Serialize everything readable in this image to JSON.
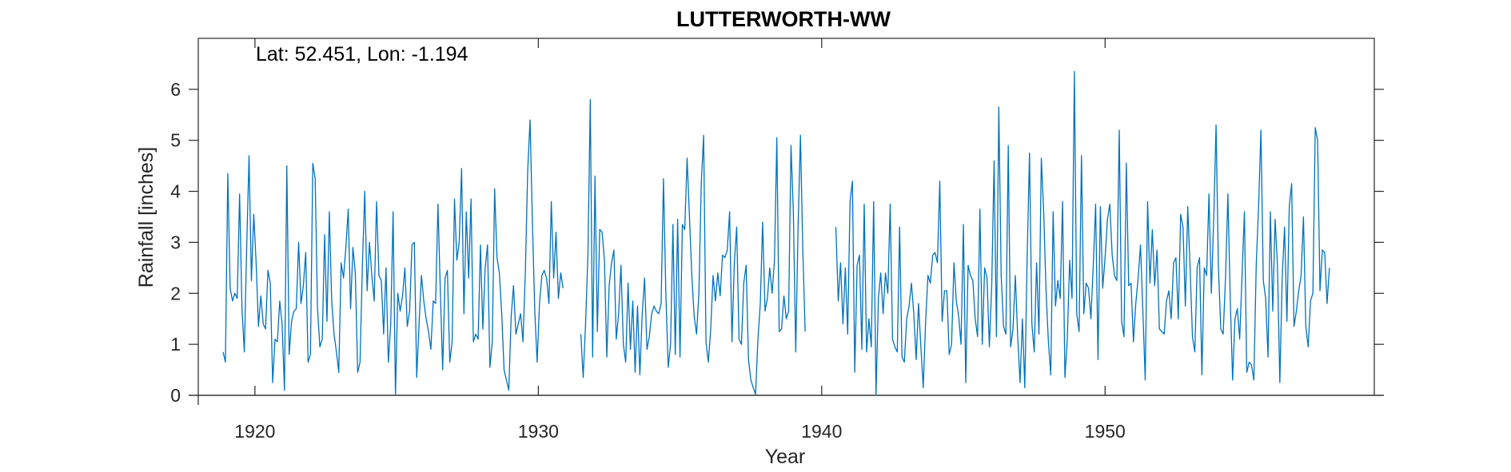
{
  "chart_data": {
    "type": "line",
    "title": "LUTTERWORTH-WW",
    "xlabel": "Year",
    "ylabel": "Rainfall [inches]",
    "annotation": "Lat: 52.451, Lon: -1.194",
    "xlim": [
      1918,
      1959.5
    ],
    "ylim": [
      0,
      7
    ],
    "xticks": [
      1920,
      1930,
      1940,
      1950
    ],
    "yticks": [
      0,
      1,
      2,
      3,
      4,
      5,
      6
    ],
    "grid": false,
    "line_color": "#0072BD",
    "series": [
      {
        "x_start": 1918.875,
        "step_months": 1,
        "segments": [
          {
            "start": 1918.875,
            "values": [
              0.85,
              0.65,
              4.35,
              2.1,
              1.85,
              2.0,
              1.9,
              3.95,
              1.7,
              0.85,
              2.9,
              4.7,
              2.25,
              3.55,
              2.6,
              1.35,
              1.95,
              1.4,
              1.3,
              2.45,
              2.2,
              0.25,
              1.1,
              1.05,
              1.85,
              1.4,
              0.1,
              4.5,
              0.8,
              1.45,
              1.65,
              1.7,
              3.0,
              1.8,
              2.15,
              2.8,
              0.65,
              0.8,
              4.55,
              4.25,
              1.7,
              0.95,
              1.1,
              3.15,
              1.45,
              3.6,
              1.85,
              1.2,
              0.85,
              0.45,
              2.6,
              2.3,
              2.9,
              3.65,
              1.7,
              2.9,
              2.4,
              0.45,
              0.65,
              2.55,
              4.0,
              2.05,
              3.0,
              2.35,
              1.85,
              3.8,
              2.35,
              2.25,
              1.2,
              2.5,
              0.65,
              1.4,
              3.6,
              0.0,
              2.0,
              1.65,
              1.95,
              2.5,
              1.35,
              1.65,
              2.95,
              3.0,
              0.35,
              1.4,
              2.35,
              1.85,
              1.5,
              1.25,
              0.9,
              1.85,
              1.8,
              3.75,
              2.05,
              0.5,
              2.3,
              2.45,
              0.65,
              1.05,
              3.85,
              2.65,
              3.0,
              4.45,
              1.6,
              3.6,
              2.3,
              3.85,
              1.05,
              1.2,
              1.1,
              2.95,
              1.3,
              2.5,
              2.95,
              0.55,
              1.05,
              4.05,
              2.7,
              2.4,
              1.6,
              0.5,
              0.3,
              0.1,
              1.55,
              2.15,
              1.2,
              1.4,
              1.6,
              1.05,
              2.4,
              4.4,
              5.4,
              3.4,
              1.65,
              0.65,
              1.8,
              2.35,
              2.45,
              2.3,
              1.8,
              3.8,
              2.3,
              3.2,
              1.9,
              2.4,
              2.1
            ]
          },
          {
            "start": 1931.5,
            "values": [
              1.2,
              0.35,
              1.4,
              2.75,
              5.8,
              0.75,
              4.3,
              1.25,
              3.25,
              3.2,
              2.65,
              0.75,
              2.15,
              2.6,
              2.85,
              1.1,
              1.6,
              2.55,
              1.0,
              0.65,
              2.2,
              0.9,
              1.85,
              0.45,
              1.75,
              0.4,
              1.6,
              2.3,
              0.9,
              1.15,
              1.6,
              1.75,
              1.65,
              1.6,
              1.8,
              4.25,
              2.0,
              0.55,
              1.0,
              3.35,
              0.8,
              3.45,
              0.75,
              3.35,
              3.25,
              4.65,
              3.5,
              2.35,
              1.55,
              1.2,
              2.0,
              4.15,
              5.1,
              1.05,
              0.65,
              1.3,
              2.35,
              1.85,
              2.4,
              1.95,
              2.75,
              2.7,
              2.85,
              3.6,
              1.05,
              2.6,
              3.3,
              1.1,
              1.0,
              2.2,
              2.55,
              0.7,
              0.3,
              0.15,
              0.02,
              1.1,
              1.8,
              3.4,
              1.65,
              1.9,
              2.5,
              2.0,
              2.65,
              5.05,
              1.25,
              1.3,
              1.95,
              1.5,
              1.65,
              4.9,
              3.6,
              0.85,
              3.3,
              5.1,
              2.85,
              1.25
            ]
          },
          {
            "start": 1940.5,
            "values": [
              3.3,
              1.85,
              2.6,
              1.4,
              2.5,
              1.2,
              3.8,
              4.2,
              0.45,
              2.55,
              2.75,
              0.9,
              3.75,
              0.85,
              1.5,
              0.95,
              3.8,
              0.0,
              1.9,
              2.4,
              1.6,
              2.4,
              2.0,
              3.75,
              1.1,
              0.95,
              0.85,
              3.3,
              0.75,
              0.65,
              1.5,
              1.75,
              2.2,
              1.6,
              0.7,
              1.8,
              0.95,
              0.15,
              1.45,
              2.35,
              2.2,
              2.75,
              2.8,
              2.6,
              4.2,
              1.45,
              2.05,
              2.05,
              0.8,
              1.0,
              2.6,
              1.85,
              1.55,
              1.0,
              3.35,
              0.25,
              2.55,
              2.35,
              2.25,
              1.5,
              1.15,
              3.65,
              1.0,
              2.5,
              2.3,
              0.95,
              2.15,
              4.6,
              1.15,
              5.65,
              2.35,
              1.35,
              1.2,
              4.9,
              0.95,
              1.3,
              2.35,
              1.15,
              0.25,
              1.5,
              0.15,
              2.7,
              4.75,
              1.4,
              0.85,
              2.6,
              1.2,
              4.65,
              3.6,
              2.05,
              1.05,
              0.4,
              3.6,
              1.75,
              2.25,
              1.9,
              3.8,
              0.35,
              1.1,
              2.65,
              1.9,
              6.35,
              1.6,
              1.25,
              4.7,
              1.6,
              2.2,
              2.1,
              1.5,
              2.55,
              3.75,
              0.7,
              3.7,
              2.1,
              2.7,
              3.45,
              3.75,
              2.75,
              2.35,
              2.25,
              5.2,
              1.45,
              1.15,
              4.55,
              2.15,
              2.2,
              1.05,
              1.8,
              2.3,
              2.95,
              1.65,
              0.3,
              3.8,
              2.2,
              3.25,
              2.15,
              2.85,
              1.3,
              1.25,
              1.2,
              1.85,
              2.05,
              1.5,
              2.6,
              2.7,
              1.5,
              3.55,
              3.3,
              1.75,
              3.7,
              2.5,
              1.15,
              0.85,
              2.5,
              2.7,
              0.4,
              2.5,
              2.35,
              3.95,
              2.0,
              3.45,
              5.3,
              2.5,
              1.3,
              1.2,
              2.3,
              3.95,
              1.9,
              0.3,
              1.5,
              1.7,
              1.1,
              2.35,
              3.6,
              0.45,
              0.65,
              0.6,
              0.3,
              2.55,
              3.7,
              5.2,
              2.25,
              1.9,
              0.75,
              3.6,
              1.65,
              3.45,
              2.55,
              0.25,
              2.3,
              3.3,
              1.45,
              3.7,
              4.15,
              1.35,
              1.65,
              2.05,
              2.35,
              3.5,
              1.35,
              0.95,
              1.85,
              2.0,
              5.25,
              5.0,
              2.05,
              2.85,
              2.8,
              1.8,
              2.5
            ]
          }
        ]
      }
    ]
  }
}
